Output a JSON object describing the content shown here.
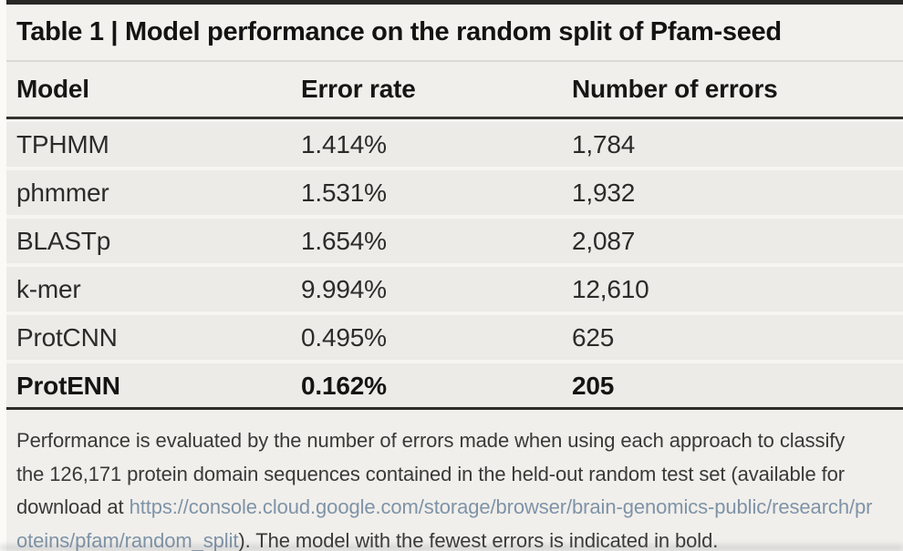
{
  "table": {
    "title": "Table 1 | Model performance on the random split of Pfam-seed",
    "columns": [
      "Model",
      "Error rate",
      "Number of errors"
    ],
    "rows": [
      {
        "model": "TPHMM",
        "error_rate": "1.414%",
        "errors": "1,784"
      },
      {
        "model": "phmmer",
        "error_rate": "1.531%",
        "errors": "1,932"
      },
      {
        "model": "BLASTp",
        "error_rate": "1.654%",
        "errors": "2,087"
      },
      {
        "model": "k-mer",
        "error_rate": "9.994%",
        "errors": "12,610"
      },
      {
        "model": "ProtCNN",
        "error_rate": "0.495%",
        "errors": "625"
      },
      {
        "model": "ProtENN",
        "error_rate": "0.162%",
        "errors": "205"
      }
    ],
    "highlighted_row": "ProtENN",
    "footnote": {
      "text_before_link": "Performance is evaluated by the number of errors made when using each approach to classify the 126,171 protein domain sequences contained in the held-out random test set (available for download at ",
      "link_text": "https://console.cloud.google.com/storage/browser/brain-genomics-public/research/proteins/pfam/random_split",
      "text_after_link": "). The model with the fewest errors is indicated in bold."
    }
  },
  "colors": {
    "rule_dark": "#2c2b29",
    "row_background": "#edebe7",
    "row_separator": "#f6f5f2",
    "title_text": "#131312",
    "body_text": "#2b2b29",
    "footnote_text": "#393937",
    "link": "#7e93a8"
  }
}
